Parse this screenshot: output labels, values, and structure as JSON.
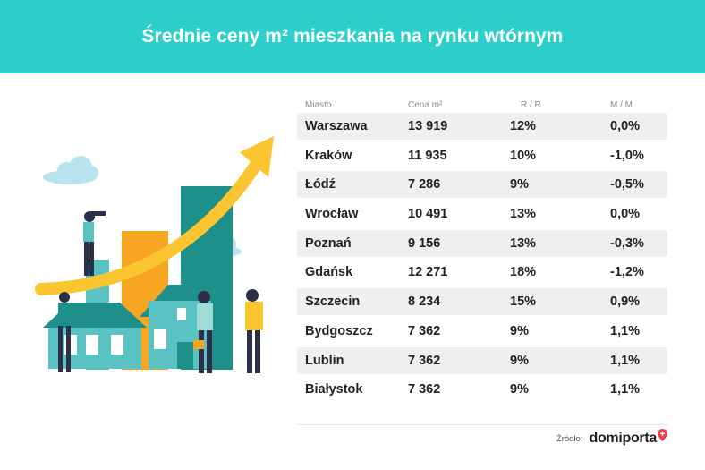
{
  "title": "Średnie ceny m² mieszkania na rynku wtórnym",
  "table": {
    "headers": [
      "Miasto",
      "Cena m²",
      "R / R",
      "M / M"
    ],
    "rows": [
      {
        "city": "Warszawa",
        "price": "13 919",
        "yoy": "12%",
        "mom": "0,0%"
      },
      {
        "city": "Kraków",
        "price": "11 935",
        "yoy": "10%",
        "mom": "-1,0%"
      },
      {
        "city": "Łódź",
        "price": "7 286",
        "yoy": "9%",
        "mom": "-0,5%"
      },
      {
        "city": "Wrocław",
        "price": "10 491",
        "yoy": "13%",
        "mom": "0,0%"
      },
      {
        "city": "Poznań",
        "price": "9 156",
        "yoy": "13%",
        "mom": "-0,3%"
      },
      {
        "city": "Gdańsk",
        "price": "12 271",
        "yoy": "18%",
        "mom": "-1,2%"
      },
      {
        "city": "Szczecin",
        "price": "8 234",
        "yoy": "15%",
        "mom": "0,9%"
      },
      {
        "city": "Bydgoszcz",
        "price": "7 362",
        "yoy": "9%",
        "mom": "1,1%"
      },
      {
        "city": "Lublin",
        "price": "7 362",
        "yoy": "9%",
        "mom": "1,1%"
      },
      {
        "city": "Białystok",
        "price": "7 362",
        "yoy": "9%",
        "mom": "1,1%"
      }
    ]
  },
  "source": {
    "label": "Źródło:",
    "brand": "domiporta"
  },
  "colors": {
    "header_bg": "#2dcfcb",
    "row_shade": "#efefef",
    "arrow": "#fbc531",
    "teal_dark": "#1f8f8a",
    "brand_pin": "#e8434f"
  }
}
